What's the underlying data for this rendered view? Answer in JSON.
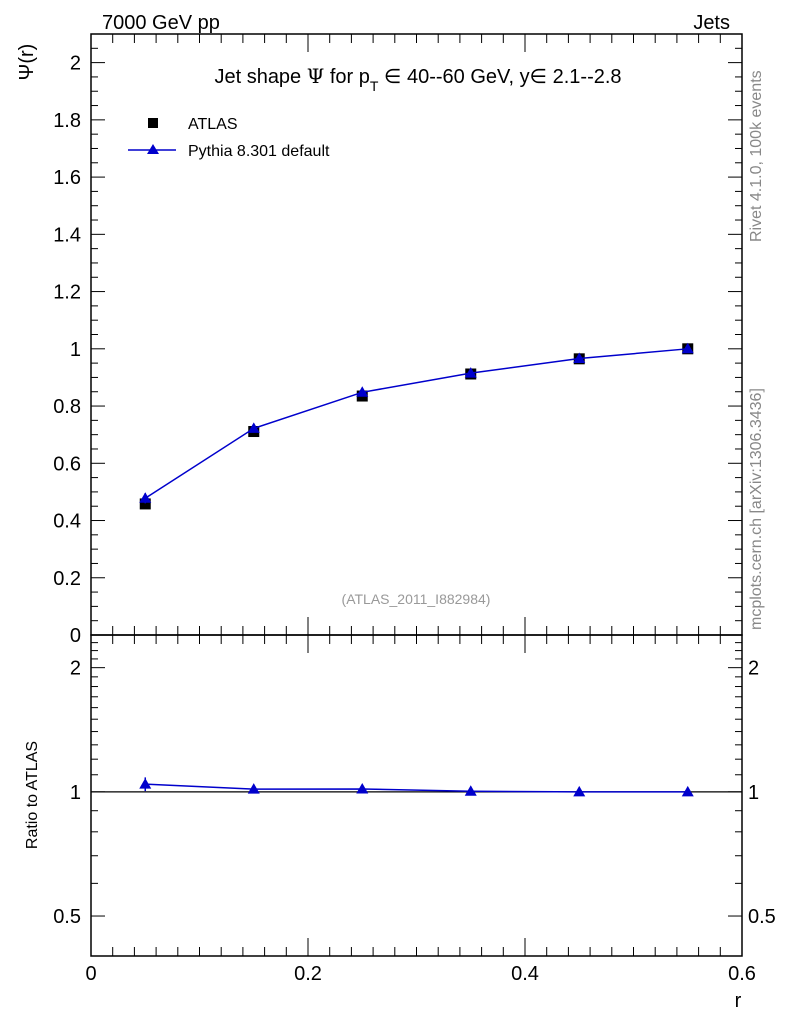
{
  "header": {
    "left": "7000 GeV pp",
    "right": "Jets"
  },
  "side": {
    "rivet": "Rivet 4.1.0,  100k events",
    "mcplots": "mcplots.cern.ch [arXiv:1306.3436]"
  },
  "chart_data": [
    {
      "type": "line",
      "panel": "main",
      "title": "Jet shape Ψ for p_T ∈ 40--60 GeV, y ∈ 2.1--2.8",
      "title_parts": {
        "pre": "Jet shape ",
        "psi": "Ψ",
        "mid": " for p",
        "sub": "T",
        "post": " ∈ 40--60 GeV, y∈ 2.1--2.8"
      },
      "ylabel": "Ψ(r)",
      "xlabel": "",
      "xlim": [
        0,
        0.6
      ],
      "ylim": [
        0,
        2.1
      ],
      "yticks": [
        0,
        0.2,
        0.4,
        0.6,
        0.8,
        1,
        1.2,
        1.4,
        1.6,
        1.8,
        2
      ],
      "ytick_labels": [
        "0",
        "0.2",
        "0.4",
        "0.6",
        "0.8",
        "1",
        "1.2",
        "1.4",
        "1.6",
        "1.8",
        "2"
      ],
      "legend_position": "top-left",
      "watermark": "(ATLAS_2011_I882984)",
      "series": [
        {
          "name": "ATLAS",
          "kind": "data",
          "color": "#000000",
          "marker": "square",
          "x": [
            0.05,
            0.15,
            0.25,
            0.35,
            0.45,
            0.55
          ],
          "y": [
            0.458,
            0.711,
            0.835,
            0.912,
            0.965,
            1.0
          ],
          "yerr": [
            0.008,
            0.006,
            0.005,
            0.004,
            0.003,
            0.0
          ]
        },
        {
          "name": "Pythia 8.301 default",
          "kind": "mc",
          "color": "#0000cc",
          "marker": "triangle",
          "x": [
            0.05,
            0.15,
            0.25,
            0.35,
            0.45,
            0.55
          ],
          "y": [
            0.478,
            0.722,
            0.848,
            0.915,
            0.966,
            1.0
          ],
          "yerr": [
            0.018,
            0.008,
            0.005,
            0.003,
            0.002,
            0.0
          ]
        }
      ]
    },
    {
      "type": "line",
      "panel": "ratio",
      "ylabel": "Ratio to ATLAS",
      "xlabel": "r",
      "xlim": [
        0,
        0.6
      ],
      "ylim": [
        0.4,
        2.4
      ],
      "log_y": true,
      "xticks": [
        0,
        0.2,
        0.4,
        0.6
      ],
      "xtick_labels": [
        "0",
        "0.2",
        "0.4",
        "0.6"
      ],
      "yticks": [
        0.5,
        1,
        2
      ],
      "ytick_labels": [
        "0.5",
        "1",
        "2"
      ],
      "series": [
        {
          "name": "Pythia 8.301 default",
          "color": "#0000cc",
          "marker": "triangle",
          "x": [
            0.05,
            0.15,
            0.25,
            0.35,
            0.45,
            0.55
          ],
          "y": [
            1.044,
            1.015,
            1.016,
            1.003,
            1.0,
            1.0
          ],
          "yerr": [
            0.04,
            0.008,
            0.006,
            0.004,
            0.002,
            0.0
          ]
        }
      ]
    }
  ]
}
